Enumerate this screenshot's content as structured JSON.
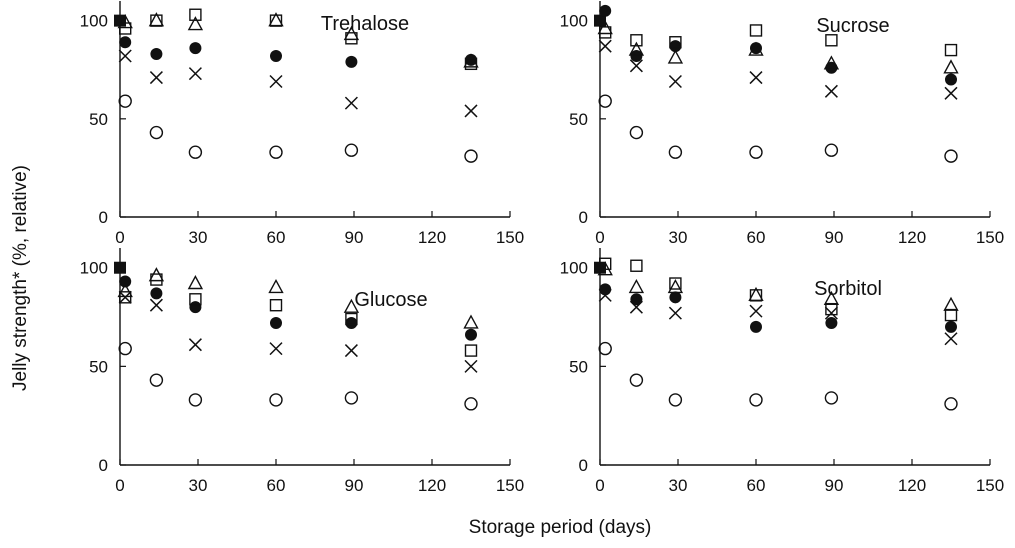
{
  "figure": {
    "xlabel": "Storage period (days)",
    "ylabel": "Jelly strength* (%, relative)"
  },
  "chart_data": [
    {
      "type": "scatter",
      "title": "Trehalose",
      "xlabel": "",
      "ylabel": "",
      "xlim": [
        0,
        150
      ],
      "ylim": [
        0,
        110
      ],
      "xticks": [
        0,
        30,
        60,
        90,
        120,
        150
      ],
      "yticks": [
        0,
        50,
        100
      ],
      "grid": false,
      "series": [
        {
          "marker": "filled-square",
          "points": [
            [
              0,
              100
            ]
          ]
        },
        {
          "marker": "open-circle",
          "points": [
            [
              2,
              59
            ],
            [
              14,
              43
            ],
            [
              29,
              33
            ],
            [
              60,
              33
            ],
            [
              89,
              34
            ],
            [
              135,
              31
            ]
          ]
        },
        {
          "marker": "filled-circle",
          "points": [
            [
              2,
              89
            ],
            [
              14,
              83
            ],
            [
              29,
              86
            ],
            [
              60,
              82
            ],
            [
              89,
              79
            ],
            [
              135,
              80
            ]
          ]
        },
        {
          "marker": "cross",
          "points": [
            [
              2,
              82
            ],
            [
              14,
              71
            ],
            [
              29,
              73
            ],
            [
              60,
              69
            ],
            [
              89,
              58
            ],
            [
              135,
              54
            ]
          ]
        },
        {
          "marker": "open-triangle",
          "points": [
            [
              2,
              99
            ],
            [
              14,
              100
            ],
            [
              29,
              98
            ],
            [
              60,
              100
            ],
            [
              89,
              93
            ],
            [
              135,
              79
            ]
          ]
        },
        {
          "marker": "open-square",
          "points": [
            [
              2,
              96
            ],
            [
              14,
              100
            ],
            [
              29,
              103
            ],
            [
              60,
              100
            ],
            [
              89,
              91
            ],
            [
              135,
              78
            ]
          ]
        }
      ]
    },
    {
      "type": "scatter",
      "title": "Sucrose",
      "xlabel": "",
      "ylabel": "",
      "xlim": [
        0,
        150
      ],
      "ylim": [
        0,
        110
      ],
      "xticks": [
        0,
        30,
        60,
        90,
        120,
        150
      ],
      "yticks": [
        0,
        50,
        100
      ],
      "grid": false,
      "series": [
        {
          "marker": "filled-square",
          "points": [
            [
              0,
              100
            ]
          ]
        },
        {
          "marker": "open-circle",
          "points": [
            [
              2,
              59
            ],
            [
              14,
              43
            ],
            [
              29,
              33
            ],
            [
              60,
              33
            ],
            [
              89,
              34
            ],
            [
              135,
              31
            ]
          ]
        },
        {
          "marker": "filled-circle",
          "points": [
            [
              2,
              105
            ],
            [
              14,
              82
            ],
            [
              29,
              87
            ],
            [
              60,
              86
            ],
            [
              89,
              76
            ],
            [
              135,
              70
            ]
          ]
        },
        {
          "marker": "cross",
          "points": [
            [
              2,
              87
            ],
            [
              14,
              77
            ],
            [
              29,
              69
            ],
            [
              60,
              71
            ],
            [
              89,
              64
            ],
            [
              135,
              63
            ]
          ]
        },
        {
          "marker": "open-triangle",
          "points": [
            [
              2,
              96
            ],
            [
              14,
              85
            ],
            [
              29,
              81
            ],
            [
              60,
              85
            ],
            [
              89,
              78
            ],
            [
              135,
              76
            ]
          ]
        },
        {
          "marker": "open-square",
          "points": [
            [
              2,
              94
            ],
            [
              14,
              90
            ],
            [
              29,
              89
            ],
            [
              60,
              95
            ],
            [
              89,
              90
            ],
            [
              135,
              85
            ]
          ]
        }
      ]
    },
    {
      "type": "scatter",
      "title": "Glucose",
      "xlabel": "",
      "ylabel": "",
      "xlim": [
        0,
        150
      ],
      "ylim": [
        0,
        110
      ],
      "xticks": [
        0,
        30,
        60,
        90,
        120,
        150
      ],
      "yticks": [
        0,
        50,
        100
      ],
      "grid": false,
      "series": [
        {
          "marker": "filled-square",
          "points": [
            [
              0,
              100
            ]
          ]
        },
        {
          "marker": "open-circle",
          "points": [
            [
              2,
              59
            ],
            [
              14,
              43
            ],
            [
              29,
              33
            ],
            [
              60,
              33
            ],
            [
              89,
              34
            ],
            [
              135,
              31
            ]
          ]
        },
        {
          "marker": "filled-circle",
          "points": [
            [
              2,
              93
            ],
            [
              14,
              87
            ],
            [
              29,
              80
            ],
            [
              60,
              72
            ],
            [
              89,
              72
            ],
            [
              135,
              66
            ]
          ]
        },
        {
          "marker": "cross",
          "points": [
            [
              2,
              85
            ],
            [
              14,
              81
            ],
            [
              29,
              61
            ],
            [
              60,
              59
            ],
            [
              89,
              58
            ],
            [
              135,
              50
            ]
          ]
        },
        {
          "marker": "open-triangle",
          "points": [
            [
              2,
              88
            ],
            [
              14,
              96
            ],
            [
              29,
              92
            ],
            [
              60,
              90
            ],
            [
              89,
              80
            ],
            [
              135,
              72
            ]
          ]
        },
        {
          "marker": "open-square",
          "points": [
            [
              2,
              85
            ],
            [
              14,
              94
            ],
            [
              29,
              84
            ],
            [
              60,
              81
            ],
            [
              89,
              74
            ],
            [
              135,
              58
            ]
          ]
        }
      ]
    },
    {
      "type": "scatter",
      "title": "Sorbitol",
      "xlabel": "",
      "ylabel": "",
      "xlim": [
        0,
        150
      ],
      "ylim": [
        0,
        110
      ],
      "xticks": [
        0,
        30,
        60,
        90,
        120,
        150
      ],
      "yticks": [
        0,
        50,
        100
      ],
      "grid": false,
      "series": [
        {
          "marker": "filled-square",
          "points": [
            [
              0,
              100
            ]
          ]
        },
        {
          "marker": "open-circle",
          "points": [
            [
              2,
              59
            ],
            [
              14,
              43
            ],
            [
              29,
              33
            ],
            [
              60,
              33
            ],
            [
              89,
              34
            ],
            [
              135,
              31
            ]
          ]
        },
        {
          "marker": "filled-circle",
          "points": [
            [
              2,
              89
            ],
            [
              14,
              84
            ],
            [
              29,
              85
            ],
            [
              60,
              70
            ],
            [
              89,
              72
            ],
            [
              135,
              70
            ]
          ]
        },
        {
          "marker": "cross",
          "points": [
            [
              2,
              86
            ],
            [
              14,
              80
            ],
            [
              29,
              77
            ],
            [
              60,
              78
            ],
            [
              89,
              77
            ],
            [
              135,
              64
            ]
          ]
        },
        {
          "marker": "open-triangle",
          "points": [
            [
              2,
              99
            ],
            [
              14,
              90
            ],
            [
              29,
              90
            ],
            [
              60,
              86
            ],
            [
              89,
              84
            ],
            [
              135,
              81
            ]
          ]
        },
        {
          "marker": "open-square",
          "points": [
            [
              2,
              102
            ],
            [
              14,
              101
            ],
            [
              29,
              92
            ],
            [
              60,
              86
            ],
            [
              89,
              79
            ],
            [
              135,
              76
            ]
          ]
        }
      ]
    }
  ]
}
